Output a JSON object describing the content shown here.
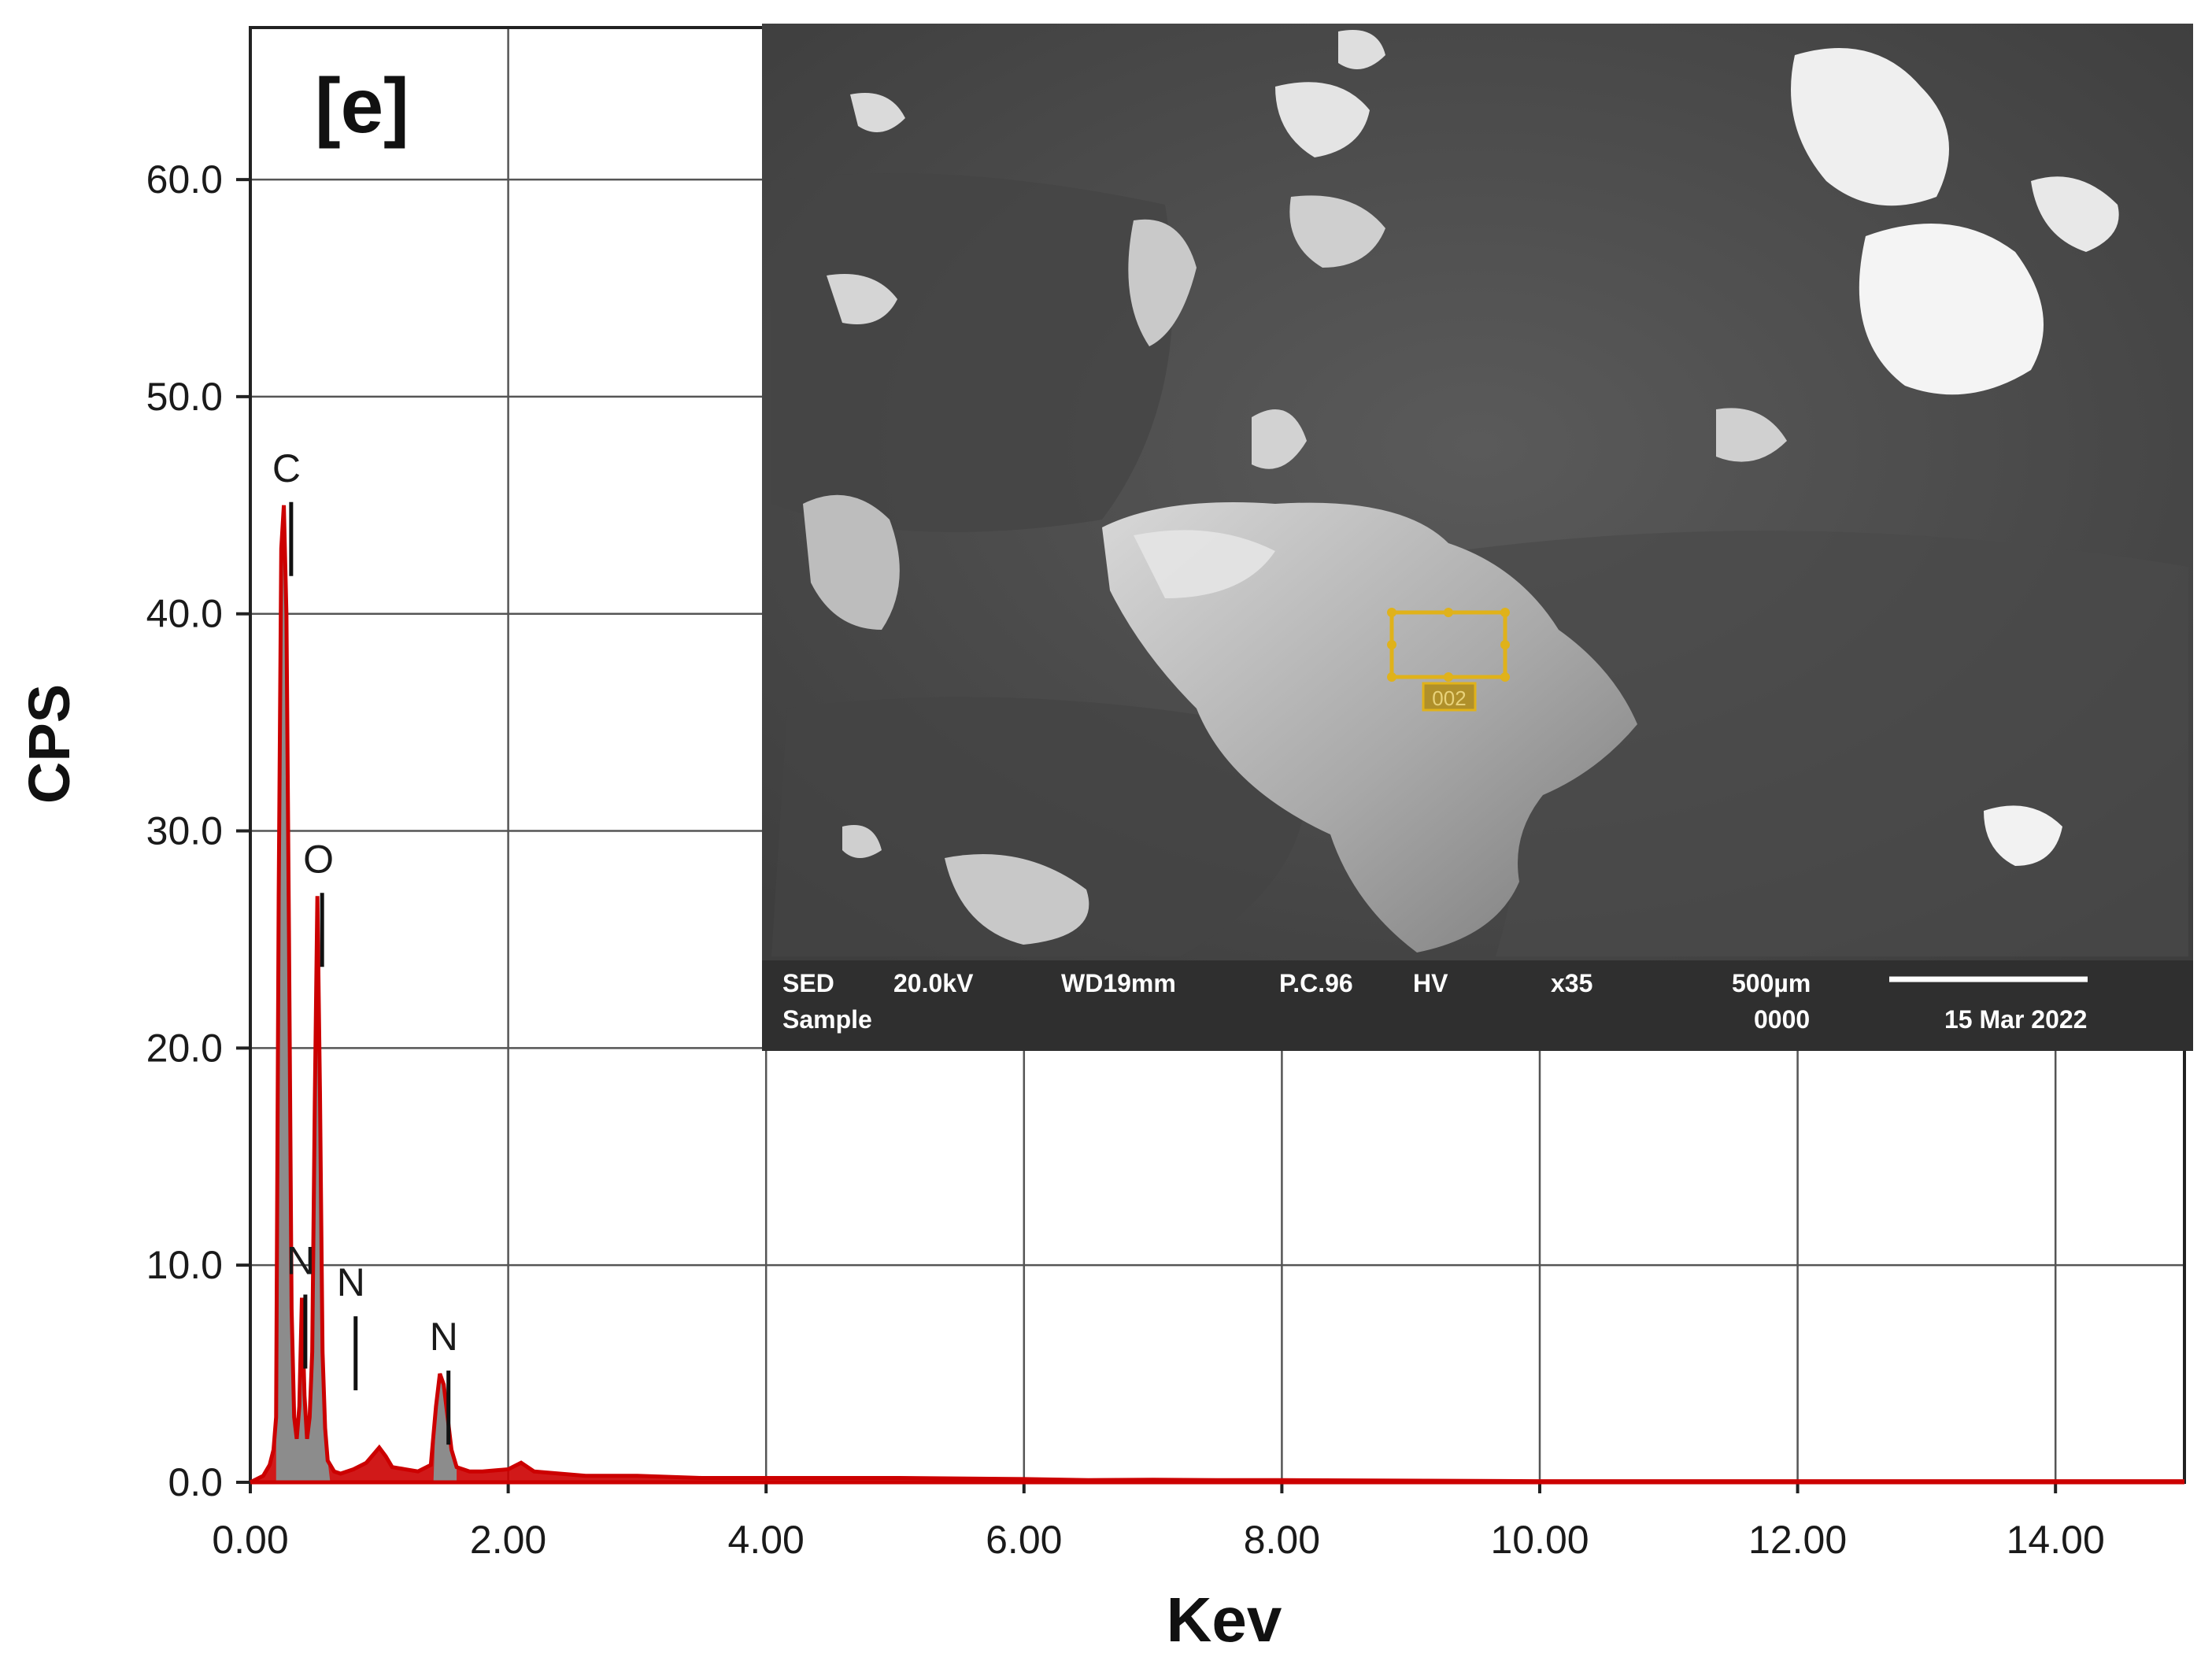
{
  "panel_label": "[e]",
  "chart_data": {
    "type": "line",
    "title": "",
    "xlabel": "Kev",
    "ylabel": "CPS",
    "xlim": [
      0,
      15
    ],
    "ylim": [
      0,
      67
    ],
    "grid": true,
    "x_ticks": [
      0,
      2,
      4,
      6,
      8,
      10,
      12,
      14
    ],
    "x_tick_labels": [
      "0.00",
      "2.00",
      "4.00",
      "6.00",
      "8.00",
      "10.00",
      "12.00",
      "14.00"
    ],
    "y_ticks": [
      0,
      10,
      20,
      30,
      40,
      50,
      60
    ],
    "y_tick_labels": [
      "0.0",
      "10.0",
      "20.0",
      "30.0",
      "40.0",
      "50.0",
      "60.0"
    ],
    "colors": {
      "spectrum": "#cc0000",
      "peak_fill": "#8c8c8c",
      "grid": "#555555"
    },
    "peaks": [
      {
        "label": "C",
        "energy": 0.28,
        "cps": 45.0
      },
      {
        "label": "O",
        "energy": 0.52,
        "cps": 27.0
      },
      {
        "label": "N",
        "energy": 0.39,
        "cps": 8.5
      },
      {
        "label": "N",
        "energy": 0.78,
        "cps": 7.5
      },
      {
        "label": "N",
        "energy": 1.5,
        "cps": 5.0
      }
    ],
    "spectrum": {
      "name": "spectrum",
      "x": [
        0.0,
        0.1,
        0.15,
        0.18,
        0.2,
        0.22,
        0.24,
        0.26,
        0.28,
        0.3,
        0.32,
        0.34,
        0.36,
        0.38,
        0.4,
        0.42,
        0.44,
        0.46,
        0.48,
        0.5,
        0.52,
        0.54,
        0.56,
        0.58,
        0.6,
        0.65,
        0.7,
        0.8,
        0.9,
        1.0,
        1.05,
        1.1,
        1.2,
        1.3,
        1.4,
        1.44,
        1.47,
        1.5,
        1.53,
        1.56,
        1.6,
        1.7,
        1.8,
        2.0,
        2.1,
        2.2,
        2.4,
        2.6,
        3.0,
        3.5,
        4.0,
        5.0,
        6.0,
        6.5,
        7.0,
        7.5,
        8.0,
        10.0,
        12.0,
        15.0
      ],
      "y": [
        0.0,
        0.3,
        0.8,
        1.5,
        3.0,
        27.0,
        43.0,
        45.0,
        40.0,
        25.0,
        8.0,
        3.0,
        2.0,
        3.5,
        8.5,
        4.0,
        2.0,
        3.0,
        6.0,
        17.5,
        27.0,
        18.0,
        6.0,
        2.5,
        1.0,
        0.5,
        0.4,
        0.6,
        0.9,
        1.6,
        1.2,
        0.7,
        0.6,
        0.5,
        0.8,
        3.5,
        5.0,
        4.5,
        3.0,
        1.5,
        0.7,
        0.5,
        0.5,
        0.6,
        0.9,
        0.5,
        0.4,
        0.3,
        0.3,
        0.2,
        0.2,
        0.2,
        0.15,
        0.1,
        0.12,
        0.1,
        0.1,
        0.05,
        0.05,
        0.05
      ]
    }
  },
  "sem_inset": {
    "row1": [
      "SED",
      "20.0kV",
      "WD19mm",
      "P.C.96",
      "HV",
      "x35",
      "500µm"
    ],
    "row2_left": "Sample",
    "row2_mid": "0000",
    "date": "15 Mar 2022",
    "roi_label": "002"
  }
}
